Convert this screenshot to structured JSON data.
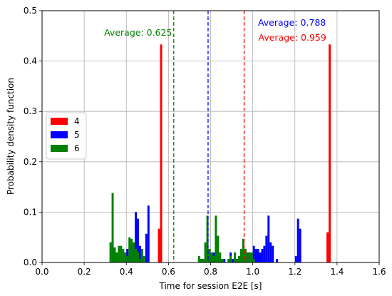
{
  "chart_data": {
    "type": "bar",
    "xlabel": "Time for session E2E [s]",
    "ylabel": "Probability density function",
    "xlim": [
      0.0,
      1.6
    ],
    "ylim": [
      0.0,
      0.5
    ],
    "xticks": [
      "0.0",
      "0.2",
      "0.4",
      "0.6",
      "0.8",
      "1.0",
      "1.2",
      "1.4",
      "1.6"
    ],
    "yticks": [
      "0.0",
      "0.1",
      "0.2",
      "0.3",
      "0.4",
      "0.5"
    ],
    "grid": true,
    "legend_position": "center-left",
    "bin_width": 0.01,
    "series": [
      {
        "name": "4",
        "color": "#ff0000",
        "x": [
          0.555,
          0.565,
          0.955,
          0.965,
          1.355,
          1.365
        ],
        "values": [
          0.067,
          0.433,
          0.007,
          0.027,
          0.06,
          0.433
        ]
      },
      {
        "name": "5",
        "color": "#0000ff",
        "x": [
          0.395,
          0.405,
          0.415,
          0.425,
          0.435,
          0.445,
          0.455,
          0.465,
          0.475,
          0.495,
          0.505,
          0.795,
          0.805,
          0.815,
          0.835,
          0.845,
          0.865,
          0.895,
          0.905,
          0.915,
          0.925,
          0.935,
          0.945,
          0.985,
          0.995,
          1.005,
          1.015,
          1.025,
          1.035,
          1.045,
          1.055,
          1.065,
          1.075,
          1.085,
          1.095,
          1.115,
          1.205,
          1.215,
          1.225
        ],
        "values": [
          0.02,
          0.027,
          0.02,
          0.033,
          0.033,
          0.1,
          0.087,
          0.033,
          0.013,
          0.057,
          0.113,
          0.013,
          0.007,
          0.02,
          0.013,
          0.007,
          0.007,
          0.02,
          0.007,
          0.013,
          0.007,
          0.007,
          0.007,
          0.02,
          0.007,
          0.033,
          0.027,
          0.027,
          0.02,
          0.027,
          0.033,
          0.053,
          0.093,
          0.04,
          0.033,
          0.007,
          0.013,
          0.087,
          0.067
        ]
      },
      {
        "name": "6",
        "color": "#008000",
        "x": [
          0.325,
          0.335,
          0.345,
          0.355,
          0.365,
          0.375,
          0.385,
          0.395,
          0.405,
          0.415,
          0.425,
          0.435,
          0.445,
          0.455,
          0.465,
          0.475,
          0.485,
          0.745,
          0.755,
          0.765,
          0.775,
          0.785,
          0.795,
          0.805,
          0.815,
          0.825,
          0.835,
          0.845,
          0.855,
          0.885,
          0.895,
          0.915,
          0.925,
          0.935,
          0.945,
          0.955,
          0.965,
          0.975,
          0.985,
          0.995,
          1.005
        ],
        "values": [
          0.04,
          0.138,
          0.03,
          0.02,
          0.033,
          0.033,
          0.027,
          0.02,
          0.013,
          0.05,
          0.047,
          0.04,
          0.027,
          0.02,
          0.007,
          0.027,
          0.013,
          0.013,
          0.007,
          0.007,
          0.04,
          0.093,
          0.027,
          0.02,
          0.013,
          0.093,
          0.053,
          0.02,
          0.007,
          0.007,
          0.013,
          0.02,
          0.007,
          0.013,
          0.027,
          0.047,
          0.027,
          0.02,
          0.02,
          0.02,
          0.007
        ]
      }
    ],
    "annotations": [
      {
        "text": "Average: 0.625",
        "x": 0.625,
        "color": "#008000"
      },
      {
        "text": "Average: 0.788",
        "x": 0.788,
        "color": "#0000ff"
      },
      {
        "text": "Average: 0.959",
        "x": 0.959,
        "color": "#ff0000"
      }
    ]
  }
}
